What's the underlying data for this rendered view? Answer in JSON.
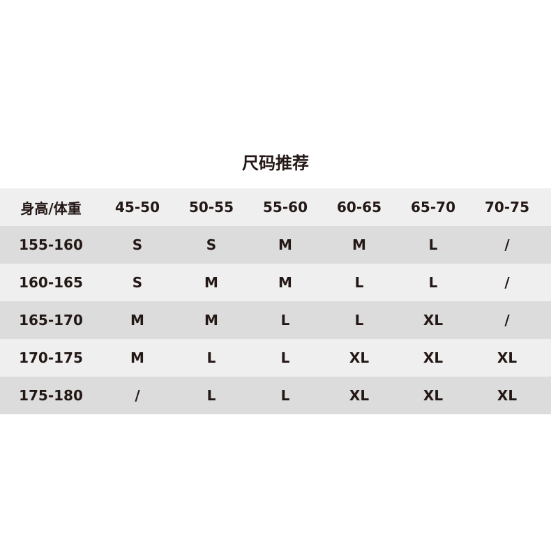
{
  "title": "尺码推荐",
  "header": [
    "身高/体重",
    "45-50",
    "50-55",
    "55-60",
    "60-65",
    "65-70",
    "70-75"
  ],
  "rows": [
    [
      "155-160",
      "S",
      "S",
      "M",
      "M",
      "L",
      "/"
    ],
    [
      "160-165",
      "S",
      "M",
      "M",
      "L",
      "L",
      "/"
    ],
    [
      "165-170",
      "M",
      "M",
      "L",
      "L",
      "XL",
      "/"
    ],
    [
      "170-175",
      "M",
      "L",
      "L",
      "XL",
      "XL",
      "XL"
    ],
    [
      "175-180",
      "/",
      "L",
      "L",
      "XL",
      "XL",
      "XL"
    ]
  ],
  "colors": {
    "row_light": "#efefef",
    "row_dark": "#dcdcdc",
    "text": "#231815"
  }
}
